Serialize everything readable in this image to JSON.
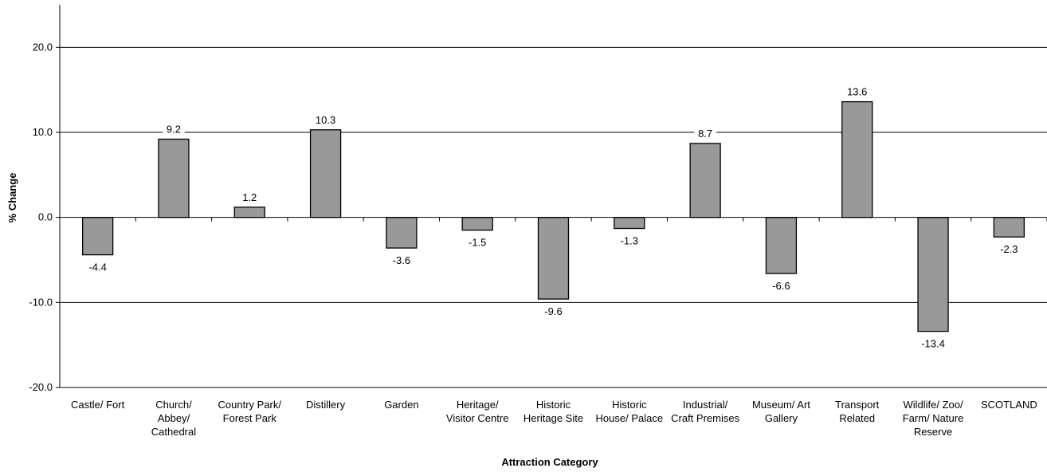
{
  "chart_data": {
    "type": "bar",
    "title": "",
    "xlabel": "Attraction Category",
    "ylabel": "% Change",
    "ylim": [
      -20,
      25
    ],
    "yticks": [
      -20,
      -10,
      0,
      10,
      20
    ],
    "ytick_labels": [
      "-20.0",
      "-10.0",
      "0.0",
      "10.0",
      "20.0"
    ],
    "grid": true,
    "legend": "none",
    "bar_color": "#999999",
    "categories": [
      [
        "Castle/ Fort"
      ],
      [
        "Church/",
        "Abbey/",
        "Cathedral"
      ],
      [
        "Country Park/",
        "Forest Park"
      ],
      [
        "Distillery"
      ],
      [
        "Garden"
      ],
      [
        "Heritage/",
        "Visitor Centre"
      ],
      [
        "Historic",
        "Heritage Site"
      ],
      [
        "Historic",
        "House/ Palace"
      ],
      [
        "Industrial/",
        "Craft Premises"
      ],
      [
        "Museum/ Art",
        "Gallery"
      ],
      [
        "Transport",
        "Related"
      ],
      [
        "Wildlife/ Zoo/",
        "Farm/ Nature",
        "Reserve"
      ],
      [
        "SCOTLAND"
      ]
    ],
    "values": [
      -4.4,
      9.2,
      1.2,
      10.3,
      -3.6,
      -1.5,
      -9.6,
      -1.3,
      8.7,
      -6.6,
      13.6,
      -13.4,
      -2.3
    ],
    "value_labels": [
      "-4.4",
      "9.2",
      "1.2",
      "10.3",
      "-3.6",
      "-1.5",
      "-9.6",
      "-1.3",
      "8.7",
      "-6.6",
      "13.6",
      "-13.4",
      "-2.3"
    ]
  }
}
